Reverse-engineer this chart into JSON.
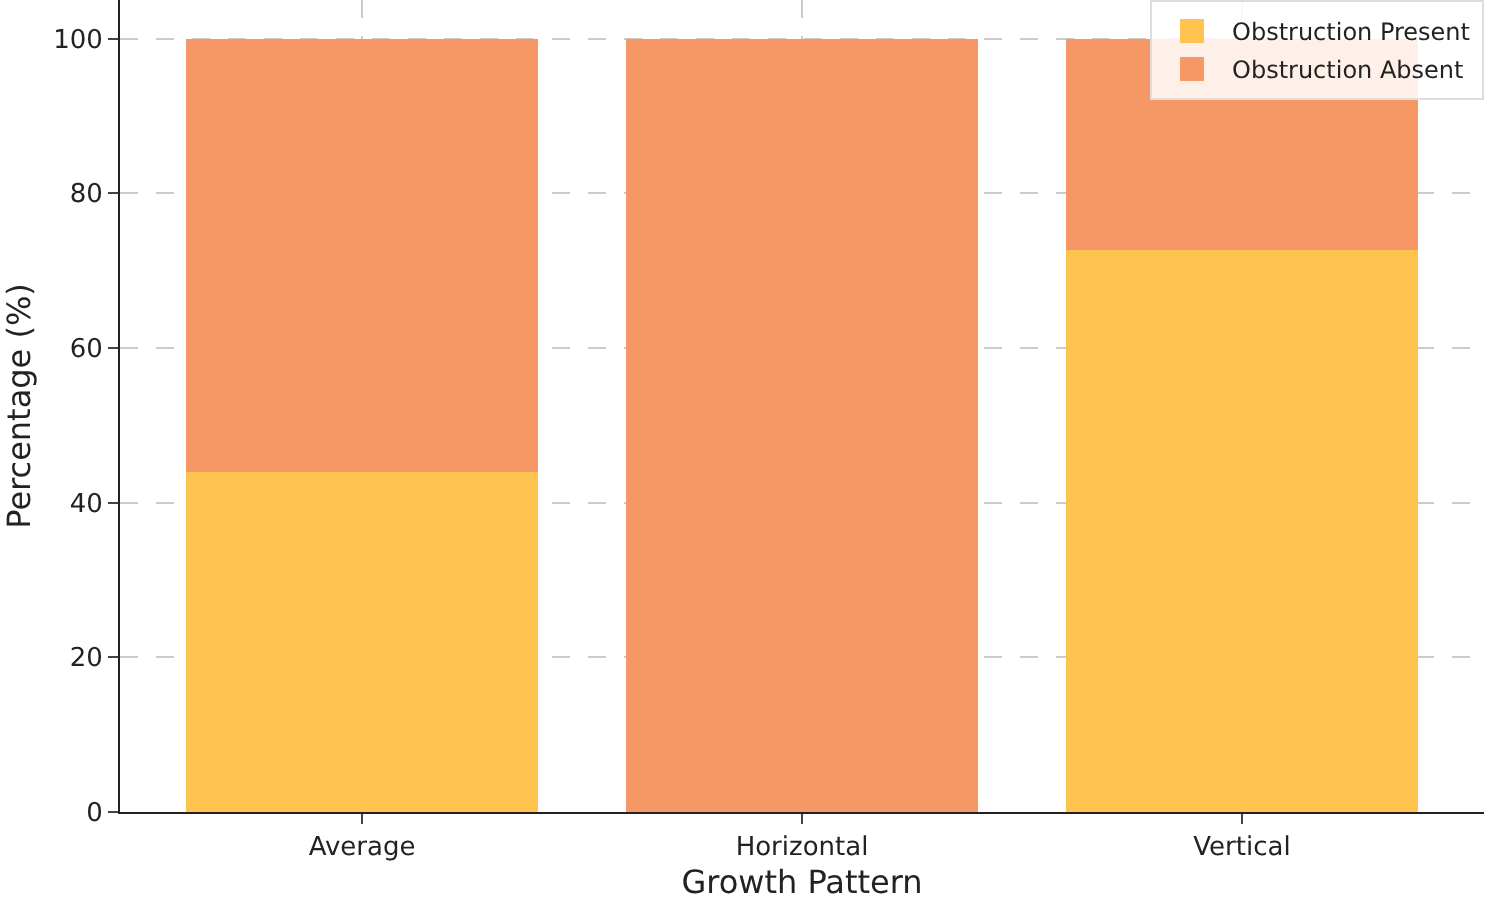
{
  "chart_data": {
    "type": "bar",
    "stacked": true,
    "xlabel": "Growth Pattern",
    "ylabel": "Percentage (%)",
    "categories": [
      "Average",
      "Horizontal",
      "Vertical"
    ],
    "series": [
      {
        "name": "Obstruction Present",
        "color": "#fec44f",
        "values": [
          44,
          0,
          72.7
        ]
      },
      {
        "name": "Obstruction Absent",
        "color": "#f69865",
        "values": [
          56,
          100,
          27.3
        ]
      }
    ],
    "ylim": [
      0,
      105
    ],
    "yticks": [
      0,
      20,
      40,
      60,
      80,
      100
    ],
    "grid": true,
    "legend": "top right"
  }
}
